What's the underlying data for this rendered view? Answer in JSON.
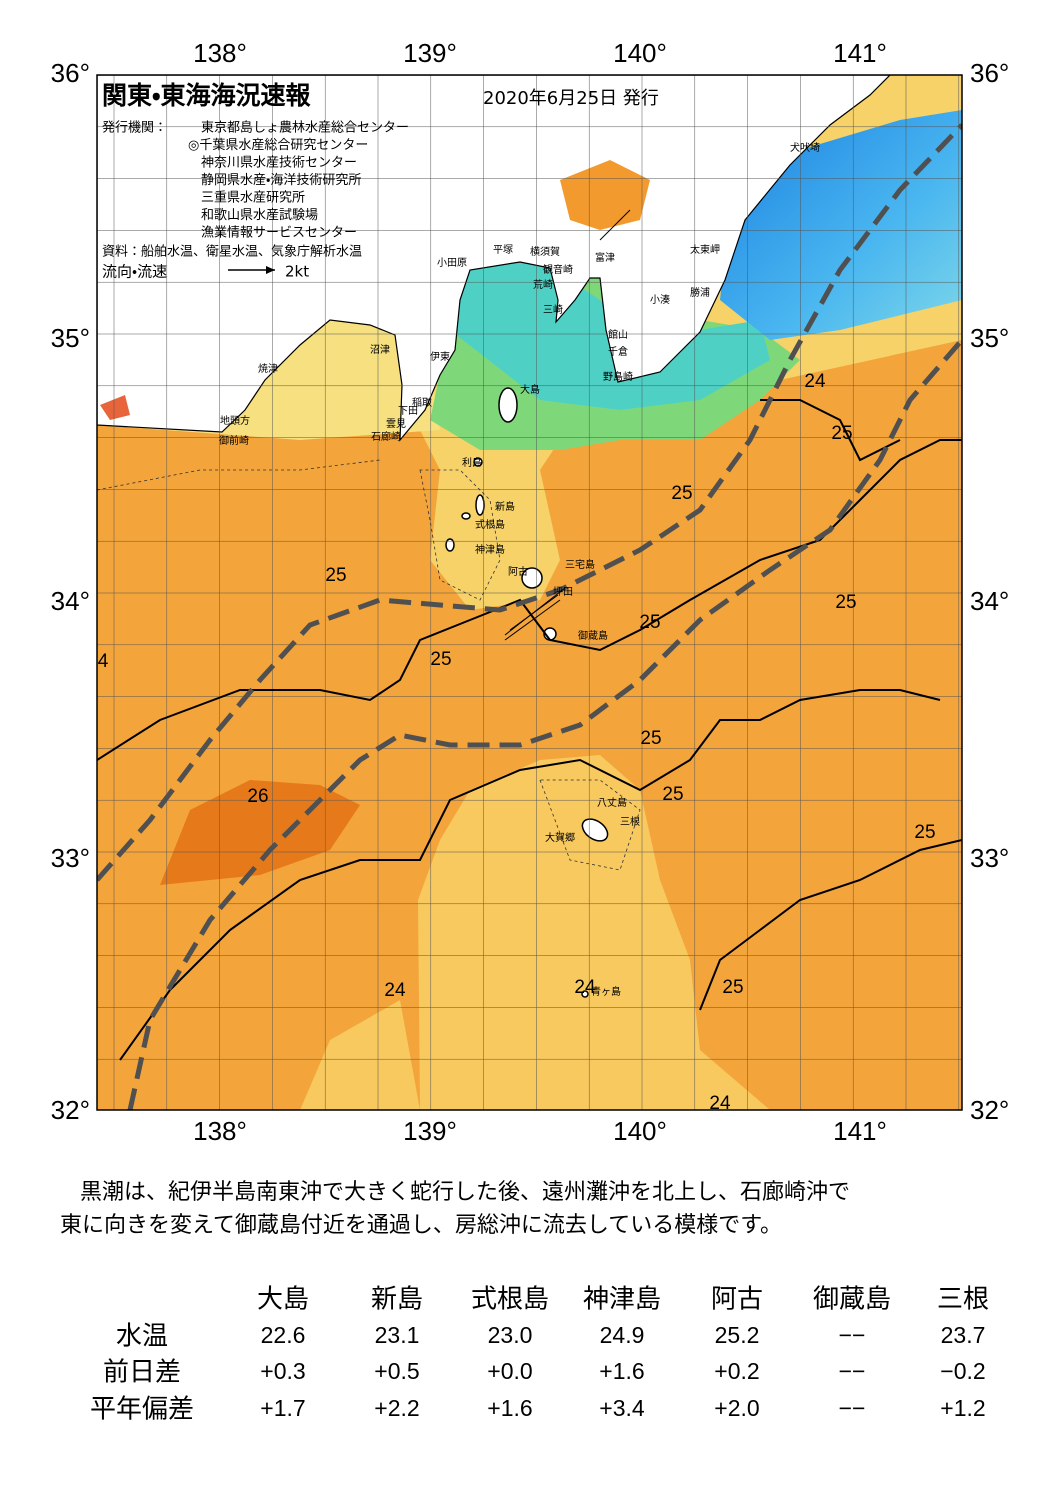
{
  "map": {
    "title": "関東・東海海況速報",
    "date": "2020年6月25日 発行",
    "issuer_label": "発行機関：",
    "issuers": [
      "東京都島しょ農林水産総合センター",
      "◎千葉県水産総合研究センター",
      "神奈川県水産技術センター",
      "静岡県水産・海洋技術研究所",
      "三重県水産研究所",
      "和歌山県水産試験場",
      "漁業情報サービスセンター"
    ],
    "source": "資料：船舶水温、衛星水温、気象庁解析水温",
    "legend_label": "流向・流速",
    "legend_scale": "2kt",
    "lon_labels": [
      "138°",
      "139°",
      "140°",
      "141°"
    ],
    "lat_labels": [
      "36°",
      "35°",
      "34°",
      "33°",
      "32°"
    ],
    "place_names": [
      "犬吠埼",
      "太東岬",
      "勝浦",
      "小湊",
      "富津",
      "横須賀",
      "平塚",
      "小田原",
      "観音崎",
      "荒崎",
      "三崎",
      "館山",
      "千倉",
      "野島崎",
      "沼津",
      "伊東",
      "焼津",
      "稲取",
      "下田",
      "雲見",
      "石廊崎",
      "地頭方",
      "御前崎",
      "大島",
      "利島",
      "新島",
      "式根島",
      "神津島",
      "三宅島",
      "阿古",
      "坪田",
      "御蔵島",
      "八丈島",
      "三根",
      "大賀郷",
      "青ヶ島"
    ],
    "contour_labels": [
      "24",
      "25",
      "25",
      "25",
      "25",
      "25",
      "25",
      "4",
      "25",
      "25",
      "26",
      "25",
      "24",
      "24",
      "25",
      "24"
    ]
  },
  "description": [
    "黒潮は、紀伊半島南東沖で大きく蛇行した後、遠州灘沖を北上し、石廊崎沖で",
    "東に向きを変えて御蔵島付近を通過し、房総沖に流去している模様です。"
  ],
  "table": {
    "columns": [
      "大島",
      "新島",
      "式根島",
      "神津島",
      "阿古",
      "御蔵島",
      "三根"
    ],
    "rows": [
      {
        "label": "水温",
        "values": [
          "22.6",
          "23.1",
          "23.0",
          "24.9",
          "25.2",
          "−−",
          "23.7"
        ]
      },
      {
        "label": "前日差",
        "values": [
          "+0.3",
          "+0.5",
          "+0.0",
          "+1.6",
          "+0.2",
          "−−",
          "−0.2"
        ]
      },
      {
        "label": "平年偏差",
        "values": [
          "+1.7",
          "+2.2",
          "+1.6",
          "+3.4",
          "+2.0",
          "−−",
          "+1.2"
        ]
      }
    ]
  }
}
